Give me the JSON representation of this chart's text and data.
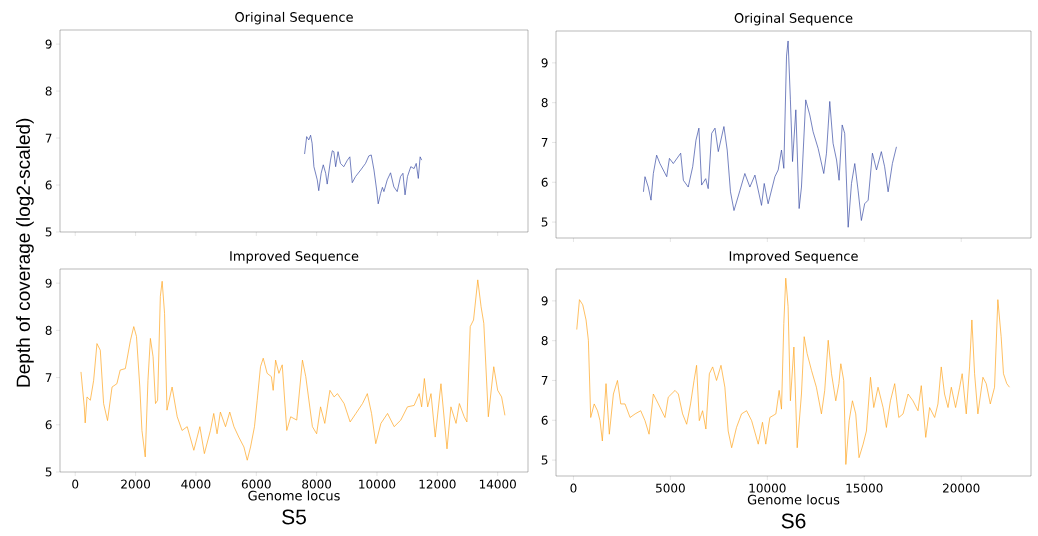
{
  "chart_data": [
    {
      "type": "line",
      "title": "Original Sequence",
      "xlim": [
        -505,
        15005
      ],
      "ylim": [
        5,
        9.3
      ],
      "xticks": [
        0,
        2000,
        4000,
        6000,
        8000,
        10000,
        12000,
        14000
      ],
      "yticks": [
        5,
        6,
        7,
        8,
        9
      ],
      "tick_labels": "y",
      "series": [
        {
          "color": "#3b4ea5",
          "x": [
            7600,
            7670,
            7740,
            7800,
            7850,
            7910,
            8020,
            8070,
            8150,
            8220,
            8300,
            8350,
            8460,
            8520,
            8570,
            8630,
            8710,
            8790,
            8900,
            9020,
            9100,
            9180,
            9290,
            9460,
            9620,
            9730,
            9810,
            9900,
            9990,
            10040,
            10120,
            10180,
            10230,
            10340,
            10450,
            10560,
            10670,
            10780,
            10860,
            10930,
            11010,
            11120,
            11230,
            11300,
            11370,
            11430,
            11480
          ],
          "values": [
            6.66,
            7.03,
            6.96,
            7.06,
            6.89,
            6.39,
            6.11,
            5.88,
            6.25,
            6.43,
            6.25,
            6.02,
            6.53,
            6.73,
            6.71,
            6.39,
            6.71,
            6.46,
            6.39,
            6.53,
            6.6,
            6.05,
            6.18,
            6.32,
            6.46,
            6.62,
            6.64,
            6.32,
            5.89,
            5.6,
            5.82,
            5.95,
            5.86,
            6.11,
            6.26,
            5.96,
            5.86,
            6.18,
            6.25,
            5.79,
            6.18,
            6.39,
            6.35,
            6.46,
            6.14,
            6.6,
            6.53
          ]
        }
      ]
    },
    {
      "type": "line",
      "title": "Original Sequence",
      "xlim": [
        -900,
        23600
      ],
      "ylim": [
        4.6,
        9.8
      ],
      "xticks": [
        0,
        5000,
        10000,
        15000,
        20000
      ],
      "yticks": [
        5,
        6,
        7,
        8,
        9
      ],
      "tick_labels": "y",
      "series": [
        {
          "color": "#3b4ea5",
          "x": [
            3610,
            3690,
            3860,
            4000,
            4120,
            4290,
            4460,
            4810,
            4950,
            5150,
            5530,
            5670,
            5920,
            6150,
            6320,
            6470,
            6610,
            6820,
            6950,
            7130,
            7300,
            7470,
            7760,
            7930,
            8100,
            8280,
            8590,
            8840,
            9100,
            9360,
            9700,
            9840,
            10040,
            10390,
            10560,
            10730,
            10850,
            10990,
            11070,
            11190,
            11300,
            11470,
            11640,
            11760,
            11980,
            12190,
            12360,
            12620,
            12910,
            13050,
            13220,
            13390,
            13570,
            13700,
            13860,
            13990,
            14170,
            14340,
            14510,
            14680,
            14850,
            15020,
            15200,
            15420,
            15630,
            15880,
            16050,
            16230,
            16450,
            16660
          ],
          "values": [
            5.76,
            6.14,
            5.88,
            5.55,
            6.22,
            6.68,
            6.47,
            6.14,
            6.6,
            6.47,
            6.73,
            6.05,
            5.88,
            6.39,
            7.06,
            7.36,
            5.93,
            6.09,
            5.84,
            7.23,
            7.36,
            6.77,
            7.4,
            6.81,
            5.76,
            5.29,
            5.8,
            6.22,
            5.88,
            6.18,
            5.42,
            5.97,
            5.46,
            6.14,
            6.31,
            6.81,
            6.35,
            9.17,
            9.55,
            8.07,
            6.52,
            7.82,
            5.34,
            5.88,
            8.07,
            7.69,
            7.27,
            6.85,
            6.22,
            6.73,
            8.03,
            6.98,
            6.56,
            6.05,
            7.44,
            7.23,
            4.87,
            5.97,
            6.47,
            5.8,
            5.04,
            5.46,
            5.55,
            6.73,
            6.31,
            6.77,
            6.39,
            5.76,
            6.47,
            6.89
          ]
        }
      ]
    },
    {
      "type": "line",
      "title": "Improved Sequence",
      "xlabel": "Genome locus",
      "ylabel": "Depth of coverage (log2-scaled)",
      "annotations": [
        "S5"
      ],
      "xlim": [
        -505,
        15005
      ],
      "ylim": [
        5,
        9.3
      ],
      "xticks": [
        0,
        2000,
        4000,
        6000,
        8000,
        10000,
        12000,
        14000
      ],
      "yticks": [
        5,
        6,
        7,
        8,
        9
      ],
      "series": [
        {
          "color": "#ffa51f",
          "x": [
            190,
            300,
            330,
            390,
            500,
            610,
            720,
            830,
            940,
            1070,
            1220,
            1380,
            1490,
            1660,
            1830,
            1940,
            2030,
            2140,
            2210,
            2320,
            2410,
            2490,
            2580,
            2660,
            2730,
            2820,
            2880,
            2960,
            3040,
            3210,
            3380,
            3540,
            3710,
            3930,
            4130,
            4280,
            4480,
            4590,
            4700,
            4810,
            4980,
            5120,
            5260,
            5420,
            5590,
            5700,
            5810,
            5940,
            6030,
            6140,
            6230,
            6360,
            6500,
            6560,
            6640,
            6750,
            6860,
            7010,
            7140,
            7340,
            7530,
            7640,
            7860,
            8000,
            8130,
            8270,
            8440,
            8580,
            8690,
            8910,
            9110,
            9300,
            9520,
            9680,
            9820,
            9960,
            10130,
            10350,
            10570,
            10790,
            11010,
            11230,
            11400,
            11480,
            11570,
            11680,
            11790,
            11930,
            12120,
            12320,
            12450,
            12620,
            12730,
            12890,
            12980,
            13090,
            13200,
            13340,
            13450,
            13540,
            13690,
            13870,
            14000,
            14130,
            14240
          ],
          "values": [
            7.12,
            6.38,
            6.04,
            6.59,
            6.52,
            6.94,
            7.72,
            7.58,
            6.45,
            6.09,
            6.8,
            6.87,
            7.16,
            7.19,
            7.79,
            8.08,
            7.87,
            6.8,
            5.88,
            5.32,
            6.94,
            7.83,
            7.44,
            6.45,
            6.52,
            8.72,
            9.04,
            8.36,
            6.31,
            6.8,
            6.17,
            5.88,
            5.96,
            5.46,
            5.96,
            5.39,
            5.88,
            6.24,
            5.81,
            6.27,
            5.96,
            6.27,
            5.96,
            5.74,
            5.53,
            5.25,
            5.53,
            5.96,
            6.52,
            7.23,
            7.41,
            7.09,
            7.02,
            6.73,
            7.37,
            7.09,
            7.27,
            5.88,
            6.17,
            6.1,
            7.37,
            7.02,
            5.96,
            5.81,
            6.38,
            6.03,
            6.73,
            6.59,
            6.66,
            6.45,
            6.06,
            6.24,
            6.45,
            6.66,
            6.24,
            5.6,
            6.03,
            6.24,
            5.96,
            6.1,
            6.38,
            6.41,
            6.66,
            6.38,
            6.98,
            6.38,
            6.66,
            5.74,
            6.87,
            5.49,
            6.38,
            6.03,
            6.45,
            6.17,
            6.06,
            8.08,
            8.22,
            9.07,
            8.5,
            8.15,
            6.17,
            7.23,
            6.73,
            6.59,
            6.2
          ]
        }
      ]
    },
    {
      "type": "line",
      "title": "Improved Sequence",
      "xlabel": "Genome locus",
      "annotations": [
        "S6"
      ],
      "xlim": [
        -900,
        23600
      ],
      "ylim": [
        4.6,
        9.8
      ],
      "xticks": [
        0,
        5000,
        10000,
        15000,
        20000
      ],
      "yticks": [
        5,
        6,
        7,
        8,
        9
      ],
      "series": [
        {
          "color": "#ffa51f",
          "x": [
            170,
            310,
            480,
            650,
            770,
            890,
            1070,
            1240,
            1370,
            1490,
            1680,
            1850,
            2060,
            2270,
            2440,
            2660,
            2920,
            3180,
            3470,
            3690,
            3900,
            4120,
            4380,
            4720,
            4890,
            5240,
            5410,
            5630,
            5840,
            6040,
            6220,
            6350,
            6490,
            6660,
            6830,
            7010,
            7180,
            7380,
            7610,
            7810,
            7980,
            8160,
            8410,
            8670,
            8930,
            9190,
            9530,
            9750,
            9920,
            10130,
            10440,
            10610,
            10730,
            10850,
            10950,
            11070,
            11190,
            11370,
            11540,
            11760,
            11900,
            12050,
            12280,
            12530,
            12790,
            12960,
            13140,
            13310,
            13530,
            13690,
            13790,
            13940,
            14050,
            14220,
            14390,
            14560,
            14730,
            14940,
            15110,
            15320,
            15490,
            15710,
            15970,
            16140,
            16350,
            16570,
            16780,
            17000,
            17260,
            17510,
            17770,
            17940,
            18170,
            18370,
            18630,
            18800,
            18970,
            19140,
            19320,
            19490,
            19710,
            19920,
            20050,
            20260,
            20430,
            20550,
            20690,
            20860,
            21120,
            21290,
            21500,
            21720,
            21890,
            22060,
            22180,
            22350,
            22490
          ],
          "values": [
            8.28,
            9.03,
            8.9,
            8.52,
            8.01,
            6.07,
            6.41,
            6.24,
            5.99,
            5.48,
            6.92,
            5.65,
            6.66,
            7.0,
            6.41,
            6.41,
            6.07,
            6.16,
            6.24,
            5.99,
            5.65,
            6.66,
            6.41,
            6.07,
            6.58,
            6.75,
            6.66,
            6.16,
            5.9,
            6.41,
            7.0,
            7.38,
            5.99,
            6.24,
            5.78,
            7.17,
            7.34,
            7.0,
            7.38,
            6.83,
            5.73,
            5.31,
            5.82,
            6.16,
            6.24,
            5.99,
            5.4,
            5.95,
            5.4,
            6.07,
            6.16,
            6.75,
            6.28,
            8.43,
            9.57,
            8.86,
            6.49,
            7.84,
            5.31,
            6.66,
            8.1,
            7.68,
            7.25,
            6.83,
            6.16,
            6.75,
            8.01,
            7.17,
            6.49,
            6.92,
            7.42,
            7.0,
            4.89,
            5.99,
            6.49,
            6.16,
            5.06,
            5.4,
            5.73,
            7.08,
            6.32,
            6.83,
            6.32,
            5.82,
            6.49,
            6.92,
            6.07,
            6.16,
            6.66,
            6.49,
            6.24,
            6.87,
            5.57,
            6.32,
            6.07,
            6.41,
            7.34,
            6.66,
            6.32,
            6.83,
            6.32,
            6.83,
            7.17,
            6.16,
            7.34,
            8.52,
            7.17,
            6.16,
            7.08,
            6.92,
            6.41,
            6.83,
            9.03,
            8.1,
            7.17,
            6.92,
            6.83
          ]
        }
      ]
    }
  ]
}
